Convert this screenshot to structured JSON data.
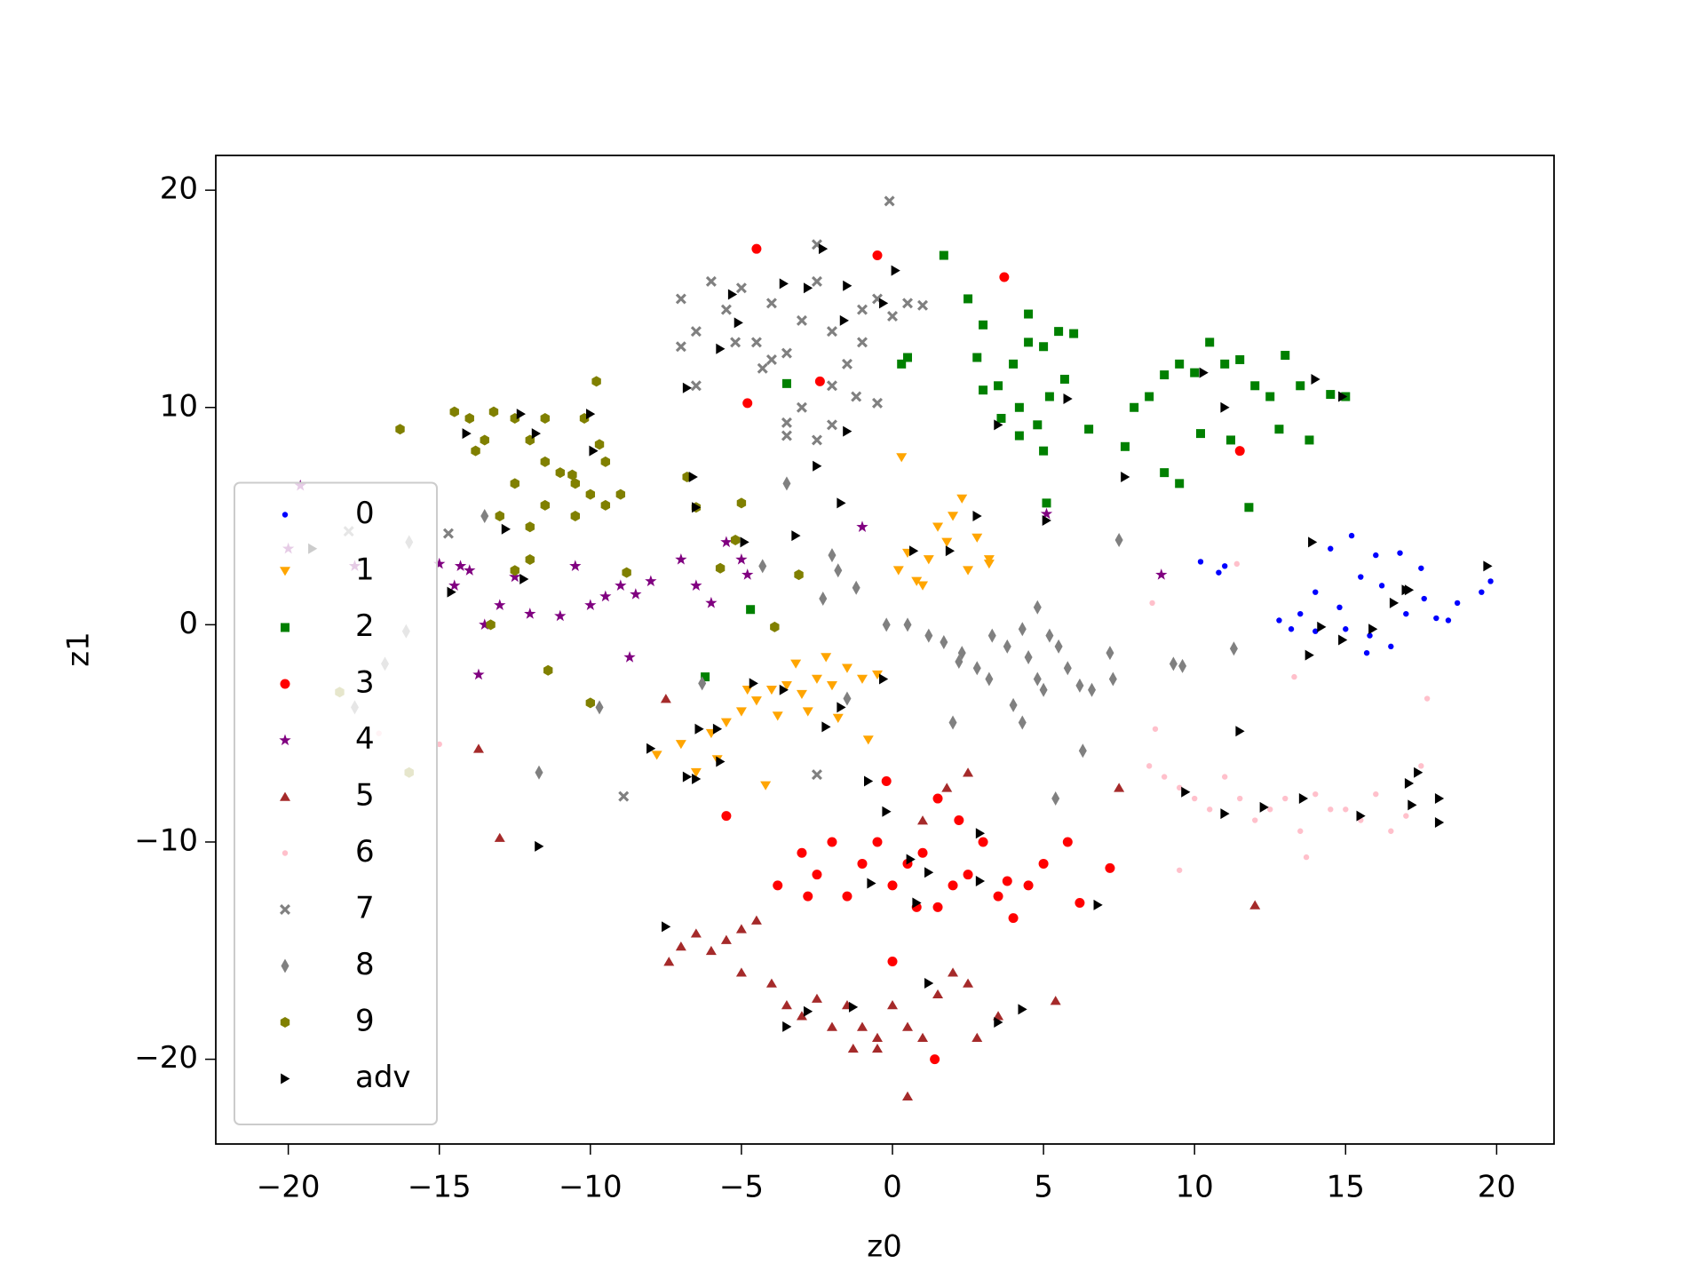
{
  "chart_data": {
    "type": "scatter",
    "x_label": "z0",
    "y_label": "z1",
    "xlim": [
      -22.4,
      21.9
    ],
    "ylim": [
      -23.9,
      21.6
    ],
    "xticks": [
      {
        "value": -20,
        "label": "−20"
      },
      {
        "value": -15,
        "label": "−15"
      },
      {
        "value": -10,
        "label": "−10"
      },
      {
        "value": -5,
        "label": "−5"
      },
      0,
      5,
      10,
      15,
      20
    ],
    "yticks": [
      {
        "value": -20,
        "label": "−20"
      },
      {
        "value": -10,
        "label": "−10"
      },
      0,
      10,
      20
    ],
    "legend": "lower left",
    "series": [
      {
        "name": "0",
        "color": "#0000ff",
        "marker": "point",
        "x": [
          14.5,
          15.2,
          16,
          16.8,
          17.5,
          15.5,
          14,
          13.5,
          12.8,
          14.8,
          16.2,
          17,
          18,
          18.7,
          19.5,
          19.8,
          15.8,
          16.5,
          15,
          14,
          17.6,
          13.2,
          10.2,
          10.8,
          11,
          15.7,
          18.4
        ],
        "y": [
          3.5,
          4.1,
          3.2,
          3.3,
          2.6,
          2.2,
          1.5,
          0.5,
          0.2,
          0.8,
          1.8,
          0.5,
          0.3,
          1,
          1.5,
          2,
          -0.5,
          -1,
          -0.2,
          -0.3,
          1.2,
          -0.2,
          2.9,
          2.4,
          2.7,
          -1.3,
          0.2
        ]
      },
      {
        "name": "1",
        "color": "#ffa500",
        "marker": "triangle-down",
        "x": [
          -7.8,
          -7,
          -6.5,
          -6,
          -5.5,
          -5,
          -4.5,
          -4,
          -3.5,
          -3,
          -2.5,
          -2,
          -1.5,
          -1,
          -0.5,
          -3.8,
          -2.8,
          -4.8,
          -3.2,
          -2.2,
          -1.8,
          -5.8,
          -4.2,
          -0.8,
          0.3,
          0.2,
          0.8,
          1.2,
          1.5,
          2,
          2.3,
          2.8,
          3.2,
          1,
          0.5,
          2.5,
          1.8,
          3.2
        ],
        "y": [
          -6,
          -5.5,
          -6.8,
          -5,
          -4.5,
          -4,
          -3.5,
          -3,
          -2.8,
          -3.2,
          -2.5,
          -2.8,
          -2,
          -2.5,
          -2.3,
          -4.2,
          -4,
          -3,
          -1.8,
          -1.5,
          -4.3,
          -6.2,
          -7.4,
          -5.3,
          7.7,
          2.5,
          2,
          3,
          4.5,
          5,
          5.8,
          4,
          3,
          1.8,
          3.3,
          2.5,
          3.8,
          2.8
        ]
      },
      {
        "name": "2",
        "color": "#008000",
        "marker": "square",
        "x": [
          2.5,
          3,
          2.8,
          3.5,
          4,
          4.5,
          4.5,
          5,
          5.5,
          6,
          5.7,
          5.2,
          4.2,
          4.8,
          3.6,
          4.2,
          5,
          6.5,
          3,
          8,
          8.5,
          9,
          9.5,
          10,
          10.5,
          11,
          11.5,
          12,
          12.5,
          13,
          13.5,
          14.5,
          15,
          10.2,
          11.2,
          12.8,
          13.8,
          9,
          9.5,
          7.7,
          11.8,
          1.7,
          0.3,
          0.5,
          -3.5,
          -4.7,
          -6.2,
          5.1
        ],
        "y": [
          15,
          13.8,
          12.3,
          11,
          12,
          13,
          14.3,
          12.8,
          13.5,
          13.4,
          11.3,
          10.5,
          10,
          9.2,
          9.5,
          8.7,
          8,
          9,
          10.8,
          10,
          10.5,
          11.5,
          12,
          11.6,
          13,
          12,
          12.2,
          11,
          10.5,
          12.4,
          11,
          10.6,
          10.5,
          8.8,
          8.5,
          9,
          8.5,
          7,
          6.5,
          8.2,
          5.4,
          17,
          12,
          12.3,
          11.1,
          0.7,
          -2.4,
          5.6
        ]
      },
      {
        "name": "3",
        "color": "#ff0000",
        "marker": "circle",
        "x": [
          -3,
          -2.5,
          -2,
          -1.5,
          -1,
          -0.5,
          0,
          0.5,
          1,
          1.5,
          2,
          2.5,
          3,
          3.5,
          4,
          4.5,
          5,
          2.2,
          1.5,
          -3.8,
          -2.8,
          0.8,
          3.8,
          5.8,
          7.2,
          6.2,
          -5.5,
          0,
          1.4,
          -4.5,
          -0.5,
          3.7,
          -2.4,
          -4.8,
          11.5,
          -0.2
        ],
        "y": [
          -10.5,
          -11.5,
          -10,
          -12.5,
          -11,
          -10,
          -12,
          -11,
          -10.5,
          -13,
          -12,
          -11.5,
          -10,
          -12.5,
          -13.5,
          -12,
          -11,
          -9,
          -8,
          -12,
          -12.5,
          -13,
          -11.8,
          -10,
          -11.2,
          -12.8,
          -8.8,
          -15.5,
          -20,
          17.3,
          17,
          16,
          11.2,
          10.2,
          8,
          -7.2
        ]
      },
      {
        "name": "4",
        "color": "#800080",
        "marker": "star",
        "x": [
          -20,
          -19.6,
          -17.8,
          -15,
          -14.5,
          -14,
          -13.5,
          -13,
          -12.5,
          -12,
          -11,
          -10.5,
          -10,
          -9.5,
          -9,
          -8.5,
          -8,
          -7,
          -6.5,
          -6,
          -5.5,
          -5,
          -4.8,
          -8.7,
          -13.7,
          -14.3,
          -1,
          8.9,
          5.1
        ],
        "y": [
          3.5,
          6.4,
          2.7,
          2.8,
          1.8,
          2.5,
          0,
          0.9,
          2.2,
          0.5,
          0.4,
          2.7,
          0.9,
          1.3,
          1.8,
          1.4,
          2,
          3,
          1.8,
          1,
          3.8,
          3,
          2.3,
          -1.5,
          -2.3,
          2.7,
          4.5,
          2.3,
          5.1
        ]
      },
      {
        "name": "5",
        "color": "#a52a2a",
        "marker": "triangle-up",
        "x": [
          -7.4,
          -7,
          -6.5,
          -6,
          -5.5,
          -5,
          -4.5,
          -5,
          -4,
          -3.5,
          -3,
          -2.5,
          -2,
          -1.5,
          -1,
          -0.5,
          0,
          0.5,
          1,
          1.5,
          2,
          2.5,
          2.8,
          3.5,
          5.4,
          0.5,
          -0.5,
          1,
          1.8,
          2.5,
          7.5,
          12,
          -7.5,
          -13.7,
          -13,
          -1.3
        ],
        "y": [
          -15.5,
          -14.8,
          -14.2,
          -15,
          -14.5,
          -14,
          -13.6,
          -16,
          -16.5,
          -17.5,
          -18,
          -17.2,
          -18.5,
          -17.5,
          -18.5,
          -19,
          -17.5,
          -18.5,
          -19,
          -17,
          -16,
          -16.5,
          -19,
          -18,
          -17.3,
          -21.7,
          -19.5,
          -9,
          -7.5,
          -6.8,
          -7.5,
          -12.9,
          -3.4,
          -5.7,
          -9.8,
          -19.5
        ]
      },
      {
        "name": "6",
        "color": "#ffc0cb",
        "marker": "point",
        "x": [
          8.5,
          9,
          9.5,
          10,
          10.5,
          11,
          11.5,
          12,
          12.5,
          13,
          13.5,
          14,
          14.5,
          15,
          15.5,
          16,
          16.5,
          17,
          17.5,
          17.7,
          13.3,
          9.5,
          13.7,
          8.7,
          8.6,
          11.4,
          -17,
          -15
        ],
        "y": [
          -6.5,
          -7,
          -7.5,
          -8,
          -8.5,
          -7,
          -8,
          -9,
          -8.5,
          -8,
          -9.5,
          -7.8,
          -8.5,
          -8.5,
          -9,
          -7.8,
          -9.5,
          -8.8,
          -6.5,
          -3.4,
          -2.4,
          -11.3,
          -10.7,
          -4.8,
          1,
          2.8,
          -5,
          -5.5
        ]
      },
      {
        "name": "7",
        "color": "#808080",
        "marker": "x",
        "x": [
          -7,
          -6.5,
          -6,
          -5.5,
          -5,
          -4.5,
          -4,
          -3.5,
          -3,
          -2.5,
          -2,
          -1.5,
          -1,
          -0.5,
          0,
          0.5,
          1,
          -1,
          -2,
          -3,
          -3.5,
          -2.5,
          -2,
          -1.2,
          -0.5,
          -4,
          -6.5,
          -7,
          -5.2,
          -4.3,
          -2.5,
          -0.1,
          -3.5,
          -2.5,
          -8.9,
          -14.7,
          -18
        ],
        "y": [
          15,
          13.5,
          15.8,
          14.5,
          15.5,
          13,
          14.8,
          12.5,
          14,
          15.8,
          13.5,
          12,
          14.5,
          15,
          14.2,
          14.8,
          14.7,
          13,
          11,
          10,
          9.3,
          8.5,
          9.2,
          10.5,
          10.2,
          12.2,
          11,
          12.8,
          13,
          11.8,
          17.5,
          19.5,
          8.7,
          -6.9,
          -7.9,
          4.2,
          4.3
        ]
      },
      {
        "name": "8",
        "color": "#808080",
        "marker": "diamond",
        "x": [
          -0.2,
          0.5,
          1.2,
          1.7,
          2.3,
          2.8,
          2.2,
          3.3,
          3.8,
          4.3,
          4.5,
          4.8,
          5,
          5.2,
          4.8,
          5.5,
          5.8,
          4.3,
          4,
          3.2,
          2,
          6.2,
          6.6,
          7.2,
          7.5,
          7.3,
          -2,
          -1.8,
          -1.2,
          -2.3,
          -3.5,
          -4.3,
          9.3,
          9.6,
          11.3,
          6.3,
          5.4,
          -1.5,
          -6.3,
          -9.7,
          -11.7,
          -13.5,
          -16.8,
          -16.1,
          -17.8,
          -16
        ],
        "y": [
          0,
          0,
          -0.5,
          -0.8,
          -1.3,
          -2,
          -1.7,
          -0.5,
          -1,
          -0.2,
          -1.5,
          -2.5,
          -3,
          -0.5,
          0.8,
          -1,
          -2,
          -4.5,
          -3.7,
          -2.5,
          -4.5,
          -2.8,
          -3,
          -1.3,
          3.9,
          -2.5,
          3.2,
          2.5,
          1.7,
          1.2,
          6.5,
          2.7,
          -1.8,
          -1.9,
          -1.1,
          -5.8,
          -8,
          -3.4,
          -2.7,
          -3.8,
          -6.8,
          5,
          -1.8,
          -0.3,
          -3.8,
          3.8
        ]
      },
      {
        "name": "9",
        "color": "#808000",
        "marker": "hexagon",
        "x": [
          -16.3,
          -14.5,
          -14,
          -13.8,
          -13.5,
          -13.2,
          -12.5,
          -12,
          -11.5,
          -11.5,
          -11,
          -10.5,
          -10,
          -9.5,
          -9,
          -10.5,
          -11.5,
          -12.5,
          -13,
          -12,
          -12,
          -10.2,
          -9.8,
          -9.5,
          -9.7,
          -10.6,
          -13.3,
          -12.5,
          -11.4,
          -10,
          -8.8,
          -6.8,
          -6.5,
          -5,
          -5.2,
          -3.9,
          -3.1,
          -5.7,
          -16,
          -18.3
        ],
        "y": [
          9,
          9.8,
          9.5,
          8,
          8.5,
          9.8,
          9.5,
          8.5,
          7.5,
          9.5,
          7,
          6.5,
          6,
          5.5,
          6,
          5,
          5.5,
          6.5,
          5,
          4.5,
          3,
          9.5,
          11.2,
          7.5,
          8.3,
          6.9,
          0,
          2.5,
          -2.1,
          -3.6,
          2.4,
          6.8,
          5.4,
          5.6,
          3.9,
          -0.1,
          2.3,
          2.6,
          -6.8,
          -3.1
        ]
      },
      {
        "name": "adv",
        "color": "#000000",
        "marker": "triangle-right",
        "x": [
          -19.2,
          -14.6,
          -12.2,
          -14.1,
          -12.3,
          -11.8,
          -10,
          -9.9,
          -12.8,
          -6.8,
          -5.3,
          -5.1,
          -5.7,
          -3.6,
          -2.3,
          -2.8,
          -1.5,
          -1.6,
          -0.3,
          0.1,
          -2.5,
          -1.5,
          -1.7,
          -3.2,
          -4.9,
          -6.6,
          -6.5,
          -4.6,
          -3.6,
          -0.3,
          -1.7,
          -2.2,
          -5.8,
          -6.4,
          -8,
          -6.8,
          -6.5,
          -5.7,
          -0.8,
          -0.2,
          -0.7,
          0.6,
          1.2,
          0.8,
          2.9,
          2.9,
          6.8,
          -7.5,
          -11.7,
          -3.5,
          -2.8,
          -1.3,
          1.2,
          3.5,
          4.3,
          0.7,
          1.9,
          2.8,
          3.5,
          5.8,
          5.1,
          7.7,
          10.3,
          11,
          14,
          14.9,
          13.9,
          14.2,
          13.8,
          14.9,
          15.9,
          16.6,
          17,
          17.1,
          19.7,
          11.5,
          9.7,
          11,
          12.3,
          13.6,
          15.5,
          17.1,
          17.2,
          17.4,
          18.1,
          18.1
        ],
        "y": [
          3.5,
          1.5,
          2.1,
          8.8,
          9.7,
          8.8,
          9.7,
          8,
          4.4,
          10.9,
          15.2,
          13.9,
          12.7,
          15.7,
          17.3,
          15.5,
          15.6,
          14,
          14.8,
          16.3,
          7.3,
          8.9,
          5.6,
          4.1,
          3.8,
          6.8,
          5.4,
          -2.7,
          -3,
          -2.5,
          -3.8,
          -4.7,
          -4.8,
          -4.8,
          -5.7,
          -7,
          -7.1,
          -6.3,
          -7.2,
          -8.6,
          -11.9,
          -10.8,
          -11.4,
          -12.8,
          -11.8,
          -9.6,
          -12.9,
          -13.9,
          -10.2,
          -18.5,
          -17.8,
          -17.6,
          -16.5,
          -18.3,
          -17.7,
          3.4,
          3.4,
          5,
          9.2,
          10.4,
          4.8,
          6.8,
          11.6,
          10,
          11.3,
          10.5,
          3.8,
          -0.1,
          -1.4,
          -0.7,
          -0.2,
          1,
          1.6,
          1.6,
          2.7,
          -4.9,
          -7.7,
          -8.7,
          -8.4,
          -8,
          -8.8,
          -7.3,
          -8.3,
          -6.8,
          -8,
          -9.1
        ]
      }
    ]
  }
}
